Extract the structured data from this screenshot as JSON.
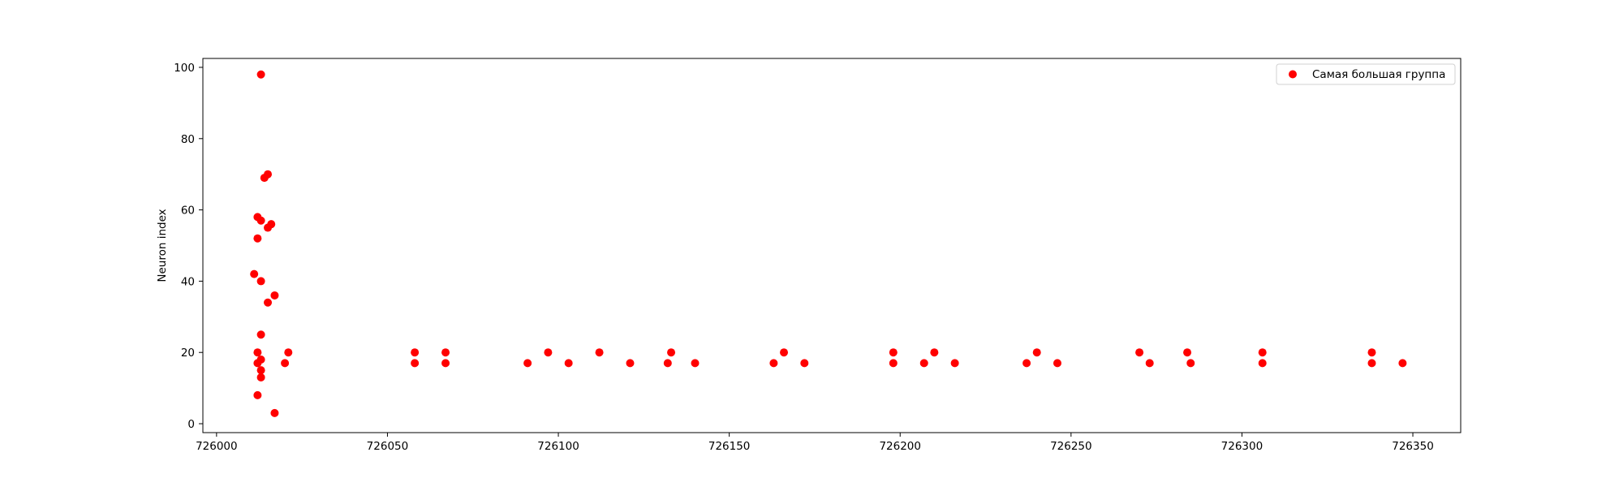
{
  "chart_data": {
    "type": "scatter",
    "title": "",
    "xlabel": "",
    "ylabel": "Neuron index",
    "xlim": [
      725996,
      726364
    ],
    "ylim": [
      -2.5,
      102.5
    ],
    "xticks": [
      726000,
      726050,
      726100,
      726150,
      726200,
      726250,
      726300,
      726350
    ],
    "yticks": [
      0,
      20,
      40,
      60,
      80,
      100
    ],
    "grid": false,
    "legend_position": "top-right",
    "colors": {
      "series": "#ff0000",
      "axes": "#000000",
      "background": "#ffffff"
    },
    "series": [
      {
        "name": "Самая большая группа",
        "color": "#ff0000",
        "points": [
          [
            726013,
            98
          ],
          [
            726015,
            70
          ],
          [
            726014,
            69
          ],
          [
            726012,
            58
          ],
          [
            726013,
            57
          ],
          [
            726016,
            56
          ],
          [
            726015,
            55
          ],
          [
            726012,
            52
          ],
          [
            726011,
            42
          ],
          [
            726013,
            40
          ],
          [
            726017,
            36
          ],
          [
            726015,
            34
          ],
          [
            726013,
            25
          ],
          [
            726012,
            20
          ],
          [
            726013,
            18
          ],
          [
            726012,
            17
          ],
          [
            726013,
            15
          ],
          [
            726013,
            13
          ],
          [
            726012,
            8
          ],
          [
            726017,
            3
          ],
          [
            726021,
            20
          ],
          [
            726020,
            17
          ],
          [
            726058,
            20
          ],
          [
            726058,
            17
          ],
          [
            726067,
            20
          ],
          [
            726067,
            17
          ],
          [
            726091,
            17
          ],
          [
            726097,
            20
          ],
          [
            726103,
            17
          ],
          [
            726112,
            20
          ],
          [
            726121,
            17
          ],
          [
            726132,
            17
          ],
          [
            726133,
            20
          ],
          [
            726140,
            17
          ],
          [
            726163,
            17
          ],
          [
            726166,
            20
          ],
          [
            726172,
            17
          ],
          [
            726198,
            20
          ],
          [
            726198,
            17
          ],
          [
            726207,
            17
          ],
          [
            726210,
            20
          ],
          [
            726216,
            17
          ],
          [
            726237,
            17
          ],
          [
            726240,
            20
          ],
          [
            726246,
            17
          ],
          [
            726270,
            20
          ],
          [
            726273,
            17
          ],
          [
            726284,
            20
          ],
          [
            726285,
            17
          ],
          [
            726306,
            20
          ],
          [
            726306,
            17
          ],
          [
            726338,
            20
          ],
          [
            726338,
            17
          ],
          [
            726347,
            17
          ]
        ]
      }
    ]
  }
}
